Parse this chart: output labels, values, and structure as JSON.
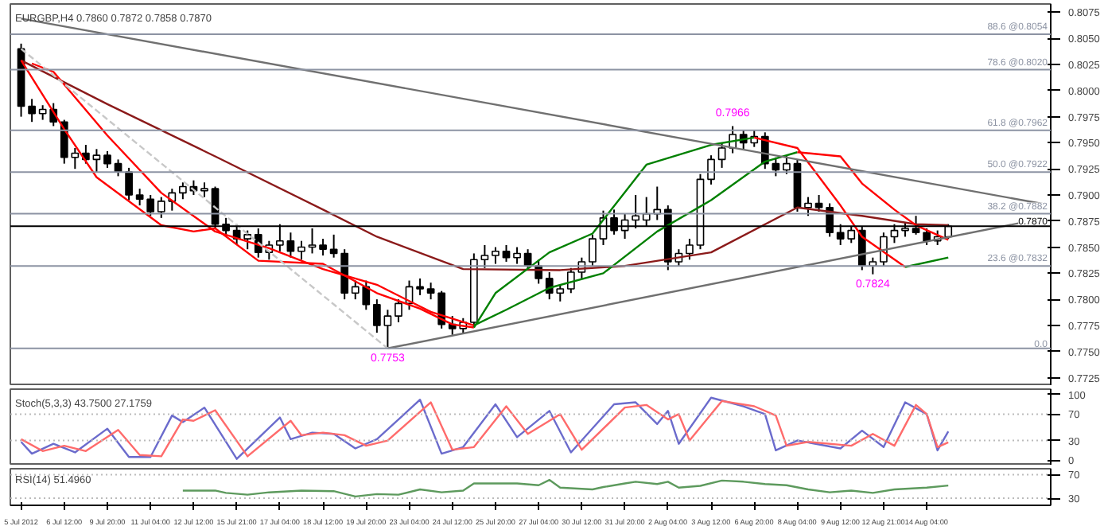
{
  "chart_data": [
    {
      "type": "candlestick",
      "title": "EURGBP,H4 0.7860 0.7872 0.7858 0.7870",
      "tick_labels": "y",
      "grid": false,
      "ylim": [
        0.7717,
        0.8083
      ],
      "yticks": [
        {
          "value": 0.7725,
          "label": "0.7725"
        },
        {
          "value": 0.775,
          "label": "0.7750"
        },
        {
          "value": 0.7775,
          "label": "0.7775"
        },
        {
          "value": 0.78,
          "label": "0.7800"
        },
        {
          "value": 0.7825,
          "label": "0.7825"
        },
        {
          "value": 0.785,
          "label": "0.7850"
        },
        {
          "value": 0.7875,
          "label": "0.7875"
        },
        {
          "value": 0.79,
          "label": "0.7900"
        },
        {
          "value": 0.7925,
          "label": "0.7925"
        },
        {
          "value": 0.795,
          "label": "0.7950"
        },
        {
          "value": 0.7975,
          "label": "0.7975"
        },
        {
          "value": 0.8,
          "label": "0.8000"
        },
        {
          "value": 0.8025,
          "label": "0.8025"
        },
        {
          "value": 0.805,
          "label": "0.8050"
        },
        {
          "value": 0.8075,
          "label": "0.8075"
        }
      ],
      "ohlc": [
        [
          0.804,
          0.8045,
          0.7975,
          0.7985
        ],
        [
          0.7985,
          0.7992,
          0.797,
          0.7978
        ],
        [
          0.7978,
          0.7986,
          0.7972,
          0.7982
        ],
        [
          0.7982,
          0.7988,
          0.7966,
          0.797
        ],
        [
          0.797,
          0.7972,
          0.793,
          0.7936
        ],
        [
          0.7936,
          0.7945,
          0.7925,
          0.794
        ],
        [
          0.794,
          0.7948,
          0.793,
          0.7934
        ],
        [
          0.7934,
          0.7944,
          0.7922,
          0.7938
        ],
        [
          0.7938,
          0.7942,
          0.7926,
          0.793
        ],
        [
          0.793,
          0.7934,
          0.7918,
          0.7922
        ],
        [
          0.7922,
          0.7926,
          0.7895,
          0.79
        ],
        [
          0.79,
          0.7906,
          0.789,
          0.7896
        ],
        [
          0.7896,
          0.79,
          0.788,
          0.7884
        ],
        [
          0.7884,
          0.7898,
          0.7878,
          0.7894
        ],
        [
          0.7894,
          0.7906,
          0.7885,
          0.7902
        ],
        [
          0.7902,
          0.7912,
          0.7896,
          0.7908
        ],
        [
          0.7908,
          0.7914,
          0.79,
          0.7904
        ],
        [
          0.7904,
          0.7912,
          0.7898,
          0.7906
        ],
        [
          0.7906,
          0.7908,
          0.7868,
          0.7872
        ],
        [
          0.7872,
          0.7878,
          0.786,
          0.7866
        ],
        [
          0.7866,
          0.7872,
          0.7852,
          0.7858
        ],
        [
          0.7858,
          0.7866,
          0.7848,
          0.7862
        ],
        [
          0.7862,
          0.7868,
          0.784,
          0.7845
        ],
        [
          0.7845,
          0.7856,
          0.7838,
          0.7852
        ],
        [
          0.7852,
          0.7872,
          0.7846,
          0.7856
        ],
        [
          0.7856,
          0.7864,
          0.784,
          0.7846
        ],
        [
          0.7846,
          0.7856,
          0.7838,
          0.785
        ],
        [
          0.785,
          0.7868,
          0.7844,
          0.7852
        ],
        [
          0.7852,
          0.7858,
          0.7842,
          0.7848
        ],
        [
          0.7848,
          0.7862,
          0.784,
          0.7844
        ],
        [
          0.7844,
          0.7848,
          0.78,
          0.7806
        ],
        [
          0.7806,
          0.7818,
          0.78,
          0.7812
        ],
        [
          0.7812,
          0.7818,
          0.779,
          0.7795
        ],
        [
          0.7795,
          0.78,
          0.7768,
          0.7775
        ],
        [
          0.7775,
          0.779,
          0.7753,
          0.7784
        ],
        [
          0.7784,
          0.78,
          0.7778,
          0.7796
        ],
        [
          0.7796,
          0.7818,
          0.779,
          0.7812
        ],
        [
          0.7812,
          0.782,
          0.7804,
          0.781
        ],
        [
          0.781,
          0.7816,
          0.78,
          0.7806
        ],
        [
          0.7806,
          0.7808,
          0.7772,
          0.7776
        ],
        [
          0.7776,
          0.7784,
          0.7766,
          0.7772
        ],
        [
          0.7772,
          0.7782,
          0.7768,
          0.7778
        ],
        [
          0.7778,
          0.7844,
          0.7774,
          0.7838
        ],
        [
          0.7838,
          0.7852,
          0.783,
          0.7842
        ],
        [
          0.7842,
          0.785,
          0.7834,
          0.7846
        ],
        [
          0.7846,
          0.7852,
          0.7836,
          0.784
        ],
        [
          0.784,
          0.785,
          0.7834,
          0.7844
        ],
        [
          0.7844,
          0.7848,
          0.7828,
          0.7832
        ],
        [
          0.7832,
          0.7838,
          0.7815,
          0.782
        ],
        [
          0.782,
          0.7826,
          0.78,
          0.7806
        ],
        [
          0.7806,
          0.7814,
          0.7798,
          0.781
        ],
        [
          0.781,
          0.783,
          0.7806,
          0.7826
        ],
        [
          0.7826,
          0.784,
          0.782,
          0.7836
        ],
        [
          0.7836,
          0.7862,
          0.7832,
          0.7858
        ],
        [
          0.7858,
          0.7885,
          0.7852,
          0.7878
        ],
        [
          0.7878,
          0.7886,
          0.7862,
          0.7866
        ],
        [
          0.7866,
          0.7882,
          0.7858,
          0.7876
        ],
        [
          0.7876,
          0.79,
          0.7868,
          0.788
        ],
        [
          0.7876,
          0.7898,
          0.787,
          0.7882
        ],
        [
          0.7882,
          0.7908,
          0.7876,
          0.7886
        ],
        [
          0.7886,
          0.789,
          0.7828,
          0.7836
        ],
        [
          0.7836,
          0.7848,
          0.7832,
          0.7844
        ],
        [
          0.7844,
          0.7858,
          0.7838,
          0.7852
        ],
        [
          0.7852,
          0.792,
          0.7848,
          0.7915
        ],
        [
          0.7915,
          0.7938,
          0.791,
          0.7934
        ],
        [
          0.7934,
          0.795,
          0.7926,
          0.7945
        ],
        [
          0.7945,
          0.7966,
          0.794,
          0.7958
        ],
        [
          0.7958,
          0.7962,
          0.7944,
          0.795
        ],
        [
          0.795,
          0.7962,
          0.7946,
          0.7956
        ],
        [
          0.7956,
          0.796,
          0.7925,
          0.793
        ],
        [
          0.793,
          0.7936,
          0.7918,
          0.7924
        ],
        [
          0.7924,
          0.7938,
          0.792,
          0.793
        ],
        [
          0.793,
          0.7934,
          0.7884,
          0.7888
        ],
        [
          0.7888,
          0.7898,
          0.788,
          0.7892
        ],
        [
          0.7892,
          0.79,
          0.7884,
          0.7888
        ],
        [
          0.7888,
          0.7892,
          0.786,
          0.7864
        ],
        [
          0.7864,
          0.7872,
          0.7852,
          0.7858
        ],
        [
          0.7858,
          0.787,
          0.7854,
          0.7866
        ],
        [
          0.7866,
          0.787,
          0.7828,
          0.7832
        ],
        [
          0.7832,
          0.784,
          0.7824,
          0.7836
        ],
        [
          0.7836,
          0.7864,
          0.7832,
          0.786
        ],
        [
          0.786,
          0.7872,
          0.7854,
          0.7866
        ],
        [
          0.7866,
          0.7874,
          0.786,
          0.7868
        ],
        [
          0.7868,
          0.788,
          0.7862,
          0.7864
        ],
        [
          0.7864,
          0.7868,
          0.7852,
          0.7856
        ],
        [
          0.7856,
          0.7866,
          0.7852,
          0.786
        ],
        [
          0.786,
          0.7872,
          0.7858,
          0.787
        ],
        null,
        null,
        null,
        null,
        null,
        null,
        null,
        null,
        null
      ],
      "series": [
        {
          "type": "line",
          "color": "#8b1a1a",
          "values": [
            0.8029,
            null,
            null,
            null,
            null,
            null,
            null,
            null,
            0.7987,
            null,
            null,
            null,
            null,
            null,
            null,
            null,
            null,
            null,
            0.7937,
            null,
            null,
            null,
            null,
            null,
            null,
            null,
            null,
            null,
            0.7886,
            null,
            null,
            null,
            null,
            0.786,
            null,
            null,
            null,
            null,
            null,
            null,
            null,
            0.7829,
            null,
            null,
            null,
            null,
            null,
            null,
            null,
            null,
            0.7828,
            null,
            null,
            null,
            null,
            null,
            0.7832,
            null,
            null,
            null,
            null,
            null,
            null,
            null,
            0.7845,
            null,
            null,
            null,
            null,
            null,
            null,
            null,
            0.7888,
            null,
            null,
            null,
            null,
            null,
            0.788,
            null,
            null,
            null,
            null,
            0.7872,
            null,
            null,
            0.7871,
            null,
            null,
            null,
            null,
            null,
            null,
            null,
            null,
            null
          ]
        },
        {
          "type": "line",
          "color": "#ff0000",
          "values": [
            0.8029,
            null,
            null,
            null,
            0.7963,
            null,
            null,
            0.7917,
            null,
            null,
            null,
            null,
            null,
            0.7871,
            null,
            null,
            0.7865,
            null,
            0.7868,
            null,
            null,
            null,
            0.7837,
            null,
            null,
            null,
            null,
            null,
            0.7834,
            null,
            null,
            null,
            null,
            0.7806,
            null,
            null,
            null,
            0.7791,
            null,
            null,
            0.7776,
            null,
            0.7773,
            null,
            null,
            null,
            null,
            null,
            null,
            null,
            null,
            null,
            null,
            null,
            null,
            null,
            null,
            null,
            null,
            null,
            null,
            null,
            null,
            null,
            null,
            null,
            null,
            null,
            null,
            null,
            null,
            null,
            null,
            null,
            null,
            null,
            null,
            null,
            null,
            null,
            null,
            null,
            null,
            null,
            null,
            null,
            null,
            null,
            null,
            null,
            null,
            null,
            null,
            null,
            null,
            null
          ]
        },
        {
          "type": "line",
          "color": "#008000",
          "values": [
            null,
            null,
            null,
            null,
            null,
            null,
            null,
            null,
            null,
            null,
            null,
            null,
            null,
            null,
            null,
            null,
            null,
            null,
            null,
            null,
            null,
            null,
            null,
            null,
            null,
            null,
            null,
            null,
            null,
            null,
            null,
            null,
            null,
            null,
            null,
            null,
            null,
            null,
            null,
            null,
            null,
            null,
            0.7773,
            null,
            0.7806,
            null,
            null,
            null,
            null,
            0.7845,
            null,
            null,
            null,
            0.7863,
            null,
            null,
            null,
            null,
            0.7929,
            null,
            null,
            null,
            null,
            null,
            0.7948,
            null,
            null,
            null,
            0.7955,
            null,
            null,
            null,
            null,
            null,
            null,
            null,
            null,
            null,
            null,
            null,
            null,
            null,
            null,
            null,
            null,
            null,
            null,
            null,
            null,
            null,
            null,
            null,
            null,
            null,
            null,
            null
          ]
        },
        {
          "type": "line",
          "color": "#ff0000",
          "values": [
            null,
            null,
            null,
            null,
            null,
            null,
            null,
            null,
            null,
            null,
            null,
            null,
            null,
            null,
            null,
            null,
            null,
            null,
            null,
            null,
            null,
            null,
            null,
            null,
            null,
            null,
            null,
            null,
            null,
            null,
            null,
            null,
            null,
            null,
            null,
            null,
            null,
            null,
            null,
            null,
            null,
            null,
            null,
            null,
            null,
            null,
            null,
            null,
            null,
            null,
            null,
            null,
            null,
            null,
            null,
            null,
            null,
            null,
            null,
            null,
            null,
            null,
            null,
            null,
            null,
            null,
            null,
            null,
            0.7955,
            null,
            null,
            null,
            0.7945,
            null,
            null,
            null,
            0.789,
            null,
            0.786,
            null,
            null,
            null,
            0.7831,
            null,
            null,
            null,
            null,
            null,
            null,
            null,
            null,
            null,
            null,
            null,
            null,
            null
          ]
        },
        {
          "type": "line",
          "color": "#008000",
          "values": [
            null,
            null,
            null,
            null,
            null,
            null,
            null,
            null,
            null,
            null,
            null,
            null,
            null,
            null,
            null,
            null,
            null,
            null,
            null,
            null,
            null,
            null,
            null,
            null,
            null,
            null,
            null,
            null,
            null,
            null,
            null,
            null,
            null,
            null,
            null,
            null,
            null,
            null,
            null,
            null,
            null,
            null,
            null,
            null,
            null,
            null,
            null,
            null,
            null,
            null,
            null,
            null,
            null,
            null,
            null,
            null,
            null,
            null,
            null,
            null,
            null,
            null,
            null,
            null,
            null,
            null,
            null,
            null,
            null,
            null,
            null,
            null,
            null,
            null,
            null,
            null,
            null,
            null,
            null,
            null,
            null,
            null,
            0.7831,
            null,
            null,
            null,
            0.784,
            null,
            null,
            null,
            null,
            null,
            null,
            null,
            null,
            null
          ]
        },
        {
          "type": "line",
          "color": "#ff0000",
          "values": [
            null,
            0.8026,
            null,
            0.8018,
            null,
            null,
            null,
            null,
            0.7957,
            null,
            null,
            null,
            null,
            0.7902,
            null,
            null,
            null,
            null,
            0.7865,
            null,
            null,
            null,
            null,
            0.7849,
            null,
            null,
            null,
            null,
            0.7829,
            null,
            null,
            null,
            null,
            0.7814,
            null,
            null,
            null,
            null,
            0.7788,
            null,
            null,
            null,
            0.7775,
            null,
            null,
            null,
            null,
            null,
            null,
            null,
            null,
            null,
            null,
            null,
            null,
            null,
            null,
            null,
            null,
            null,
            null,
            null,
            null,
            null,
            null,
            null,
            null,
            null,
            null,
            null,
            null,
            null,
            null,
            null,
            null,
            null,
            null,
            null,
            null,
            null,
            null,
            null,
            null,
            null,
            null,
            null,
            null,
            null,
            null,
            null,
            null,
            null,
            null,
            null,
            null,
            null
          ]
        },
        {
          "type": "line",
          "color": "#008000",
          "values": [
            null,
            null,
            null,
            null,
            null,
            null,
            null,
            null,
            null,
            null,
            null,
            null,
            null,
            null,
            null,
            null,
            null,
            null,
            null,
            null,
            null,
            null,
            null,
            null,
            null,
            null,
            null,
            null,
            null,
            null,
            null,
            null,
            null,
            null,
            null,
            null,
            null,
            null,
            null,
            null,
            null,
            null,
            0.7775,
            null,
            null,
            0.779,
            null,
            null,
            null,
            0.7811,
            null,
            null,
            null,
            null,
            0.7825,
            null,
            null,
            null,
            null,
            0.7865,
            null,
            null,
            null,
            null,
            0.7895,
            null,
            null,
            null,
            null,
            0.7932,
            null,
            null,
            0.7941,
            null,
            null,
            null,
            null,
            null,
            null,
            null,
            null,
            null,
            null,
            null,
            null,
            null,
            null,
            null,
            null,
            null,
            null,
            null,
            null,
            null,
            null,
            null
          ]
        },
        {
          "type": "line",
          "color": "#ff0000",
          "values": [
            null,
            null,
            null,
            null,
            null,
            null,
            null,
            null,
            null,
            null,
            null,
            null,
            null,
            null,
            null,
            null,
            null,
            null,
            null,
            null,
            null,
            null,
            null,
            null,
            null,
            null,
            null,
            null,
            null,
            null,
            null,
            null,
            null,
            null,
            null,
            null,
            null,
            null,
            null,
            null,
            null,
            null,
            null,
            null,
            null,
            null,
            null,
            null,
            null,
            null,
            null,
            null,
            null,
            null,
            null,
            null,
            null,
            null,
            null,
            null,
            null,
            null,
            null,
            null,
            null,
            null,
            null,
            null,
            null,
            null,
            null,
            null,
            0.7941,
            null,
            null,
            null,
            0.7937,
            null,
            0.7911,
            null,
            null,
            0.7886,
            null,
            0.7871,
            null,
            null,
            0.7857,
            null,
            null,
            null,
            null,
            null,
            null,
            null,
            null,
            null
          ]
        },
        {
          "type": "line",
          "color": "#707070",
          "values": [
            0.8069,
            null,
            null,
            null,
            null,
            null,
            null,
            null,
            null,
            null,
            null,
            null,
            null,
            null,
            null,
            null,
            null,
            null,
            null,
            null,
            null,
            null,
            null,
            null,
            null,
            null,
            null,
            null,
            null,
            null,
            null,
            null,
            null,
            null,
            null,
            null,
            null,
            null,
            null,
            null,
            null,
            null,
            null,
            null,
            null,
            null,
            null,
            null,
            null,
            null,
            null,
            null,
            null,
            null,
            null,
            null,
            null,
            null,
            null,
            null,
            null,
            null,
            null,
            null,
            null,
            null,
            null,
            null,
            null,
            null,
            null,
            null,
            null,
            null,
            null,
            null,
            null,
            null,
            null,
            null,
            null,
            null,
            null,
            null,
            null,
            null,
            null,
            null,
            null,
            null,
            null,
            null,
            null,
            null,
            null,
            0.7891
          ]
        },
        {
          "type": "line",
          "color": "#707070",
          "values": [
            null,
            null,
            null,
            null,
            null,
            null,
            null,
            null,
            null,
            null,
            null,
            null,
            null,
            null,
            null,
            null,
            null,
            null,
            null,
            null,
            null,
            null,
            null,
            null,
            null,
            null,
            null,
            null,
            null,
            null,
            null,
            null,
            null,
            null,
            0.7753,
            null,
            null,
            null,
            null,
            null,
            null,
            null,
            null,
            null,
            null,
            null,
            null,
            null,
            null,
            null,
            null,
            null,
            null,
            null,
            null,
            null,
            null,
            null,
            null,
            null,
            null,
            null,
            null,
            null,
            null,
            null,
            null,
            null,
            null,
            null,
            null,
            null,
            null,
            null,
            null,
            null,
            null,
            null,
            null,
            null,
            null,
            null,
            null,
            null,
            null,
            null,
            null,
            null,
            null,
            null,
            null,
            null,
            null,
            null,
            null,
            0.7878
          ]
        },
        {
          "type": "line",
          "color": "#c8c8c8",
          "line_style": "dashed",
          "values": [
            0.804,
            null,
            null,
            null,
            null,
            null,
            null,
            null,
            null,
            null,
            null,
            null,
            null,
            null,
            null,
            null,
            null,
            null,
            null,
            null,
            null,
            null,
            null,
            null,
            null,
            null,
            null,
            null,
            null,
            null,
            null,
            null,
            null,
            null,
            0.7753,
            null,
            null,
            null,
            null,
            null,
            null,
            null,
            null,
            null,
            null,
            null,
            null,
            null,
            null,
            null,
            null,
            null,
            null,
            null,
            null,
            null,
            null,
            null,
            null,
            null,
            null,
            null,
            null,
            null,
            null,
            null,
            null,
            null,
            null,
            null,
            null,
            null,
            null,
            null,
            null,
            null,
            null,
            null,
            null,
            null,
            null,
            null,
            null,
            null,
            null,
            null,
            null,
            null,
            null,
            null,
            null,
            null,
            null,
            null,
            null,
            null
          ]
        }
      ],
      "ref_lines": [
        {
          "axis": "y",
          "value": 0.8054,
          "label": "88.6 @0.8054",
          "color": "#8c93a3"
        },
        {
          "axis": "y",
          "value": 0.802,
          "label": "78.6 @0.8020",
          "color": "#8c93a3"
        },
        {
          "axis": "y",
          "value": 0.7962,
          "label": "61.8 @0.7962",
          "color": "#8c93a3"
        },
        {
          "axis": "y",
          "value": 0.7922,
          "label": "50.0 @0.7922",
          "color": "#8c93a3"
        },
        {
          "axis": "y",
          "value": 0.7882,
          "label": "38.2 @0.7882",
          "color": "#8c93a3"
        },
        {
          "axis": "y",
          "value": 0.787,
          "label": "0.7870",
          "color": "#000000"
        },
        {
          "axis": "y",
          "value": 0.7832,
          "label": "23.6 @0.7832",
          "color": "#8c93a3"
        },
        {
          "axis": "y",
          "value": 0.7753,
          "color": "#8c93a3"
        }
      ],
      "annotations": [
        {
          "text": "0.7753",
          "y": 0.7753
        },
        {
          "text": "0.7966",
          "y": 0.7966
        },
        {
          "text": "0.7824",
          "y": 0.7824
        },
        {
          "text": "0.0",
          "y": 0.7753
        }
      ]
    },
    {
      "type": "line",
      "title": "Stoch(5,3,3) 43.7500 27.1759",
      "tick_labels": "y",
      "grid": false,
      "ylim": [
        -8,
        108
      ],
      "yticks": [
        0,
        30,
        70,
        100
      ],
      "series": [
        {
          "color": "#6b6bcc",
          "values": [
            28,
            10,
            null,
            25,
            null,
            12,
            null,
            null,
            48,
            null,
            5,
            null,
            5,
            null,
            68,
            58,
            null,
            80,
            null,
            null,
            2,
            null,
            null,
            null,
            65,
            32,
            null,
            42,
            null,
            40,
            null,
            18,
            null,
            32,
            null,
            null,
            null,
            92,
            null,
            10,
            null,
            20,
            null,
            null,
            85,
            null,
            35,
            null,
            null,
            75,
            null,
            12,
            null,
            null,
            null,
            85,
            null,
            88,
            null,
            55,
            75,
            25,
            null,
            null,
            95,
            null,
            null,
            82,
            null,
            70,
            15,
            null,
            30,
            null,
            null,
            null,
            18,
            null,
            45,
            null,
            20,
            null,
            88,
            null,
            70,
            15,
            43.75,
            null,
            null,
            null,
            null,
            null,
            null,
            null,
            null,
            null
          ]
        },
        {
          "color": "#ff6b6b",
          "values": [
            32,
            null,
            14,
            null,
            22,
            null,
            14,
            null,
            null,
            46,
            null,
            8,
            null,
            6,
            null,
            62,
            60,
            null,
            76,
            null,
            null,
            6,
            null,
            null,
            null,
            60,
            38,
            null,
            42,
            null,
            38,
            null,
            22,
            null,
            30,
            null,
            null,
            null,
            88,
            null,
            16,
            null,
            20,
            null,
            null,
            82,
            null,
            40,
            null,
            null,
            70,
            null,
            16,
            null,
            null,
            null,
            80,
            null,
            84,
            null,
            62,
            70,
            30,
            null,
            null,
            90,
            null,
            null,
            82,
            null,
            68,
            22,
            null,
            28,
            null,
            null,
            null,
            22,
            null,
            40,
            null,
            22,
            null,
            84,
            70,
            20,
            27.1759,
            null,
            null,
            null,
            null,
            null,
            null,
            null,
            null,
            null
          ]
        }
      ],
      "ref_lines": [
        {
          "axis": "y",
          "value": 70,
          "color": "#bbbbbb",
          "line_style": "dotted"
        },
        {
          "axis": "y",
          "value": 30,
          "color": "#bbbbbb",
          "line_style": "dotted"
        }
      ]
    },
    {
      "type": "line",
      "title": "RSI(14) 51.4960",
      "grid": false,
      "categories": [
        "5 Jul 2012",
        null,
        null,
        null,
        "6 Jul 12:00",
        null,
        null,
        null,
        "9 Jul 20:00",
        null,
        null,
        null,
        "11 Jul 04:00",
        null,
        null,
        null,
        "12 Jul 12:00",
        null,
        null,
        null,
        "15 Jul 21:00",
        null,
        null,
        null,
        "17 Jul 04:00",
        null,
        null,
        null,
        "18 Jul 12:00",
        null,
        null,
        null,
        "19 Jul 20:00",
        null,
        null,
        null,
        "23 Jul 04:00",
        null,
        null,
        null,
        "24 Jul 12:00",
        null,
        null,
        null,
        "25 Jul 20:00",
        null,
        null,
        null,
        "27 Jul 04:00",
        null,
        null,
        null,
        "30 Jul 12:00",
        null,
        null,
        null,
        "31 Jul 20:00",
        null,
        null,
        null,
        "2 Aug 04:00",
        null,
        null,
        null,
        "3 Aug 12:00",
        null,
        null,
        null,
        "6 Aug 20:00",
        null,
        null,
        null,
        "8 Aug 04:00",
        null,
        null,
        null,
        "9 Aug 12:00",
        null,
        null,
        null,
        "12 Aug 21:00",
        null,
        null,
        null,
        "14 Aug 04:00",
        null,
        null,
        null,
        null,
        null,
        null,
        null,
        null,
        null,
        null,
        null
      ],
      "ylim": [
        18,
        80
      ],
      "yticks": [
        30,
        70
      ],
      "series": [
        {
          "color": "#5d9a5d",
          "values": [
            null,
            null,
            null,
            null,
            null,
            null,
            null,
            null,
            null,
            null,
            null,
            null,
            null,
            null,
            null,
            43,
            null,
            null,
            43,
            39,
            null,
            36,
            null,
            40,
            null,
            null,
            43,
            null,
            null,
            42,
            null,
            33,
            null,
            37,
            null,
            36,
            null,
            45,
            null,
            40,
            null,
            43,
            55,
            null,
            null,
            null,
            55,
            null,
            52,
            61,
            48,
            null,
            null,
            45,
            49,
            null,
            55,
            58,
            null,
            54,
            58,
            48,
            null,
            51,
            null,
            60,
            null,
            58,
            null,
            54,
            null,
            52,
            null,
            45,
            null,
            40,
            null,
            43,
            null,
            39,
            null,
            45,
            null,
            null,
            48,
            null,
            51.496,
            null,
            null,
            null,
            null,
            null,
            null,
            null,
            null,
            null
          ]
        }
      ],
      "ref_lines": [
        {
          "axis": "y",
          "value": 70,
          "color": "#bbbbbb",
          "line_style": "dotted"
        },
        {
          "axis": "y",
          "value": 30,
          "color": "#bbbbbb",
          "line_style": "dotted"
        }
      ]
    }
  ]
}
